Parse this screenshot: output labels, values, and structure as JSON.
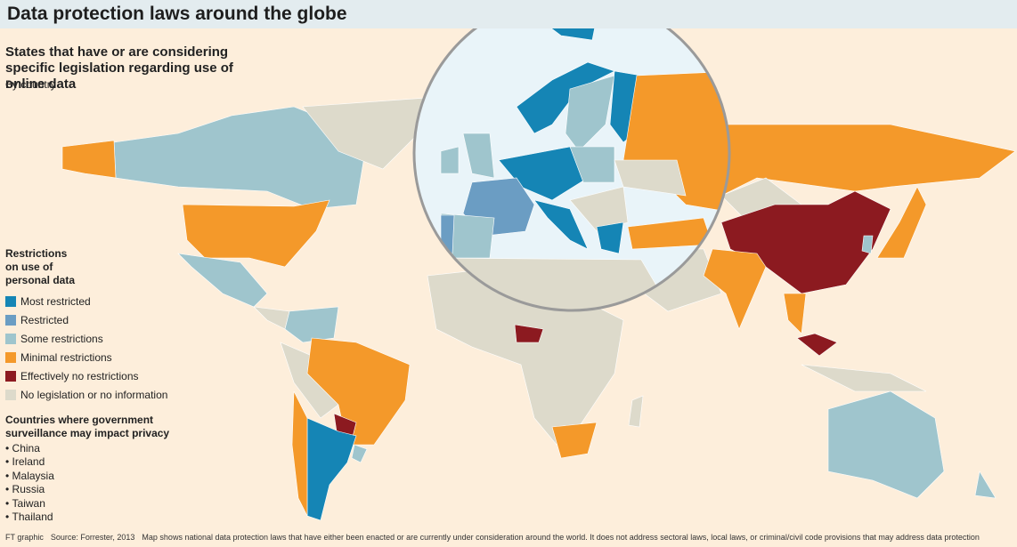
{
  "header": {
    "title": "Data protection laws around the globe",
    "subtitle": "States that have or are considering specific legislation regarding use of online data",
    "unit": "By country"
  },
  "legend": {
    "title": "Restrictions on use of personal data",
    "items": [
      {
        "label": "Most restricted",
        "color": "#1585b5"
      },
      {
        "label": "Restricted",
        "color": "#6b9dc3"
      },
      {
        "label": "Some restrictions",
        "color": "#9fc5cd"
      },
      {
        "label": "Minimal restrictions",
        "color": "#f4992a"
      },
      {
        "label": "Effectively no restrictions",
        "color": "#8c1a20"
      },
      {
        "label": "No legislation or no information",
        "color": "#dddacb"
      }
    ]
  },
  "surveillance": {
    "title": "Countries where government surveillance may impact privacy",
    "items": [
      "China",
      "Ireland",
      "Malaysia",
      "Russia",
      "Taiwan",
      "Thailand"
    ]
  },
  "footer": {
    "credit": "FT graphic",
    "source": "Source: Forrester, 2013",
    "note": "Map shows national data protection laws that have either been enacted or are currently under consideration around the world. It does not address sectoral laws, local laws, or criminal/civil code provisions that may address data protection"
  }
}
